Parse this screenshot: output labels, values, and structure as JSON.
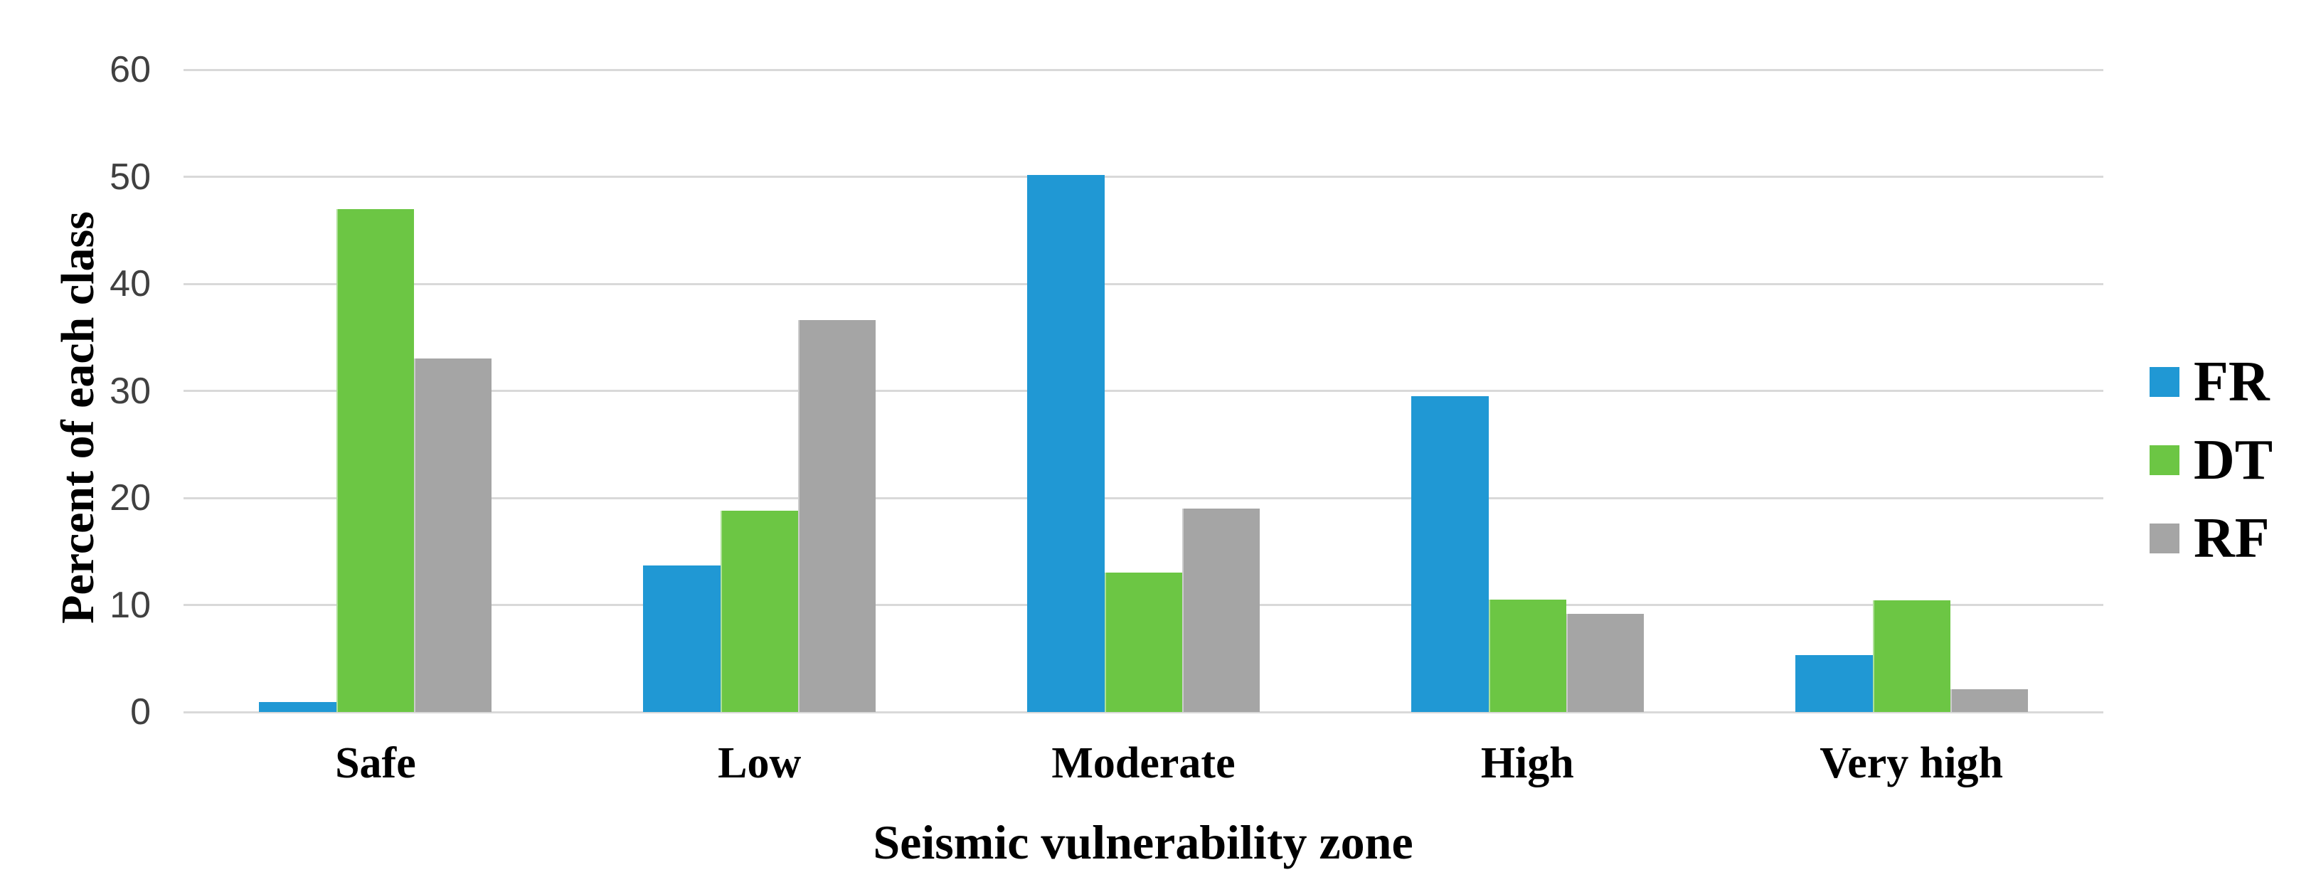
{
  "chart_data": {
    "type": "bar",
    "title": "",
    "xlabel": "Seismic vulnerability zone",
    "ylabel": "Percent of each class",
    "categories": [
      "Safe",
      "Low",
      "Moderate",
      "High",
      "Very high"
    ],
    "series": [
      {
        "name": "FR",
        "color": "#2098D4",
        "values": [
          0.9,
          13.7,
          50.2,
          29.5,
          5.3
        ]
      },
      {
        "name": "DT",
        "color": "#6CC644",
        "values": [
          47.0,
          18.8,
          13.0,
          10.5,
          10.4
        ]
      },
      {
        "name": "RF",
        "color": "#A5A5A5",
        "values": [
          33.0,
          36.6,
          19.0,
          9.2,
          2.1
        ]
      }
    ],
    "yticks": [
      0,
      10,
      20,
      30,
      40,
      50,
      60
    ],
    "ylim": [
      0,
      60
    ],
    "grid": true,
    "gridline_color": "#D9D9D9",
    "axis_text_color": "#404040",
    "legend_position": "right",
    "legend_labels": [
      "FR",
      "DT",
      "RF"
    ]
  }
}
